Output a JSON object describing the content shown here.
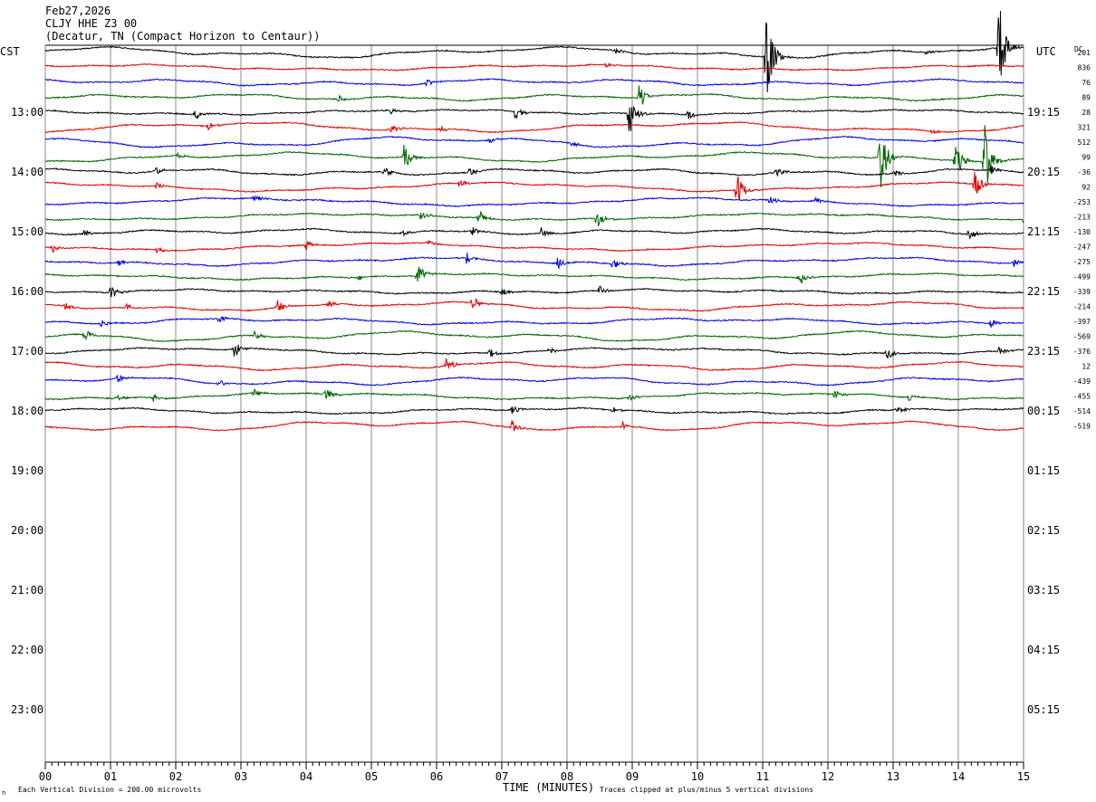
{
  "header": {
    "date": "Feb27,2026",
    "station": "CLJY HHE Z3 00",
    "location": "(Decatur, TN (Compact Horizon to Centaur))"
  },
  "labels": {
    "left_zone": "CST",
    "right_zone": "UTC",
    "dc_label": "DC",
    "xlabel": "TIME (MINUTES)",
    "footer_left": "Each Vertical Division =  200.00 microvolts",
    "footer_right": "Traces clipped at plus/minus 5 vertical divisions"
  },
  "colors": {
    "trace_cycle": [
      "#000000",
      "#e00000",
      "#0000e0",
      "#006400"
    ],
    "grid": "#888888"
  },
  "chart_data": {
    "type": "line",
    "title": "CLJY HHE Z3 00",
    "xlabel": "TIME (MINUTES)",
    "xlim": [
      0,
      15
    ],
    "x_ticks": [
      "00",
      "01",
      "02",
      "03",
      "04",
      "05",
      "06",
      "07",
      "08",
      "09",
      "10",
      "11",
      "12",
      "13",
      "14",
      "15"
    ],
    "rows_total": 48,
    "rows_per_hour": 4,
    "rows_with_data": 26,
    "left_hour_labels": [
      "13:00",
      "14:00",
      "15:00",
      "16:00",
      "17:00",
      "18:00",
      "19:00",
      "20:00",
      "21:00",
      "22:00",
      "23:00"
    ],
    "right_hour_labels": [
      "19:15",
      "20:15",
      "21:15",
      "22:15",
      "23:15",
      "00:15",
      "01:15",
      "02:15",
      "03:15",
      "04:15",
      "05:15"
    ],
    "dc_offsets": [
      "201",
      "836",
      "76",
      "89",
      "28",
      "321",
      "512",
      "99",
      "-36",
      "92",
      "-253",
      "-213",
      "-130",
      "-247",
      "-275",
      "-499",
      "-339",
      "-214",
      "-397",
      "-569",
      "-376",
      "12",
      "-439",
      "-455",
      "-514",
      "-519"
    ],
    "events": [
      {
        "row": 0,
        "minute": 11.05,
        "amp": 60
      },
      {
        "row": 0,
        "minute": 14.62,
        "amp": 60
      },
      {
        "row": 0,
        "minute": 8.75,
        "amp": 4
      },
      {
        "row": 0,
        "minute": 13.5,
        "amp": 3
      },
      {
        "row": 1,
        "minute": 8.6,
        "amp": 3
      },
      {
        "row": 2,
        "minute": 5.85,
        "amp": 5
      },
      {
        "row": 3,
        "minute": 4.5,
        "amp": 4
      },
      {
        "row": 3,
        "minute": 9.1,
        "amp": 15
      },
      {
        "row": 4,
        "minute": 2.3,
        "amp": 6
      },
      {
        "row": 4,
        "minute": 7.2,
        "amp": 10
      },
      {
        "row": 4,
        "minute": 8.95,
        "amp": 28
      },
      {
        "row": 4,
        "minute": 9.85,
        "amp": 6
      },
      {
        "row": 4,
        "minute": 5.3,
        "amp": 4
      },
      {
        "row": 5,
        "minute": 2.5,
        "amp": 5
      },
      {
        "row": 5,
        "minute": 5.3,
        "amp": 6
      },
      {
        "row": 5,
        "minute": 6.05,
        "amp": 5
      },
      {
        "row": 5,
        "minute": 13.6,
        "amp": 4
      },
      {
        "row": 6,
        "minute": 6.8,
        "amp": 4
      },
      {
        "row": 6,
        "minute": 8.05,
        "amp": 4
      },
      {
        "row": 7,
        "minute": 5.5,
        "amp": 18
      },
      {
        "row": 7,
        "minute": 12.8,
        "amp": 45
      },
      {
        "row": 7,
        "minute": 13.95,
        "amp": 25
      },
      {
        "row": 7,
        "minute": 14.4,
        "amp": 50
      },
      {
        "row": 7,
        "minute": 2.0,
        "amp": 4
      },
      {
        "row": 8,
        "minute": 1.7,
        "amp": 5
      },
      {
        "row": 8,
        "minute": 5.2,
        "amp": 6
      },
      {
        "row": 8,
        "minute": 6.5,
        "amp": 6
      },
      {
        "row": 8,
        "minute": 11.2,
        "amp": 7
      },
      {
        "row": 8,
        "minute": 13.0,
        "amp": 5
      },
      {
        "row": 8,
        "minute": 14.5,
        "amp": 6
      },
      {
        "row": 9,
        "minute": 1.7,
        "amp": 5
      },
      {
        "row": 9,
        "minute": 6.35,
        "amp": 5
      },
      {
        "row": 9,
        "minute": 10.6,
        "amp": 22
      },
      {
        "row": 9,
        "minute": 14.25,
        "amp": 18
      },
      {
        "row": 10,
        "minute": 3.2,
        "amp": 6
      },
      {
        "row": 10,
        "minute": 11.1,
        "amp": 5
      },
      {
        "row": 10,
        "minute": 11.8,
        "amp": 5
      },
      {
        "row": 11,
        "minute": 5.75,
        "amp": 7
      },
      {
        "row": 11,
        "minute": 6.65,
        "amp": 10
      },
      {
        "row": 11,
        "minute": 8.45,
        "amp": 12
      },
      {
        "row": 11,
        "minute": 15.0,
        "amp": 5
      },
      {
        "row": 12,
        "minute": 0.6,
        "amp": 5
      },
      {
        "row": 12,
        "minute": 5.45,
        "amp": 5
      },
      {
        "row": 12,
        "minute": 6.55,
        "amp": 5
      },
      {
        "row": 12,
        "minute": 7.6,
        "amp": 7
      },
      {
        "row": 12,
        "minute": 14.15,
        "amp": 9
      },
      {
        "row": 13,
        "minute": 0.1,
        "amp": 6
      },
      {
        "row": 13,
        "minute": 1.7,
        "amp": 6
      },
      {
        "row": 13,
        "minute": 4.0,
        "amp": 7
      },
      {
        "row": 13,
        "minute": 5.85,
        "amp": 4
      },
      {
        "row": 14,
        "minute": 1.1,
        "amp": 4
      },
      {
        "row": 14,
        "minute": 6.45,
        "amp": 8
      },
      {
        "row": 14,
        "minute": 7.85,
        "amp": 8
      },
      {
        "row": 14,
        "minute": 8.7,
        "amp": 8
      },
      {
        "row": 14,
        "minute": 14.85,
        "amp": 5
      },
      {
        "row": 15,
        "minute": 4.8,
        "amp": 4
      },
      {
        "row": 15,
        "minute": 5.7,
        "amp": 18
      },
      {
        "row": 15,
        "minute": 11.55,
        "amp": 11
      },
      {
        "row": 16,
        "minute": 1.0,
        "amp": 10
      },
      {
        "row": 16,
        "minute": 7.0,
        "amp": 5
      },
      {
        "row": 16,
        "minute": 8.5,
        "amp": 7
      },
      {
        "row": 17,
        "minute": 0.3,
        "amp": 6
      },
      {
        "row": 17,
        "minute": 1.25,
        "amp": 5
      },
      {
        "row": 17,
        "minute": 3.55,
        "amp": 9
      },
      {
        "row": 17,
        "minute": 4.35,
        "amp": 5
      },
      {
        "row": 17,
        "minute": 6.55,
        "amp": 8
      },
      {
        "row": 18,
        "minute": 0.85,
        "amp": 5
      },
      {
        "row": 18,
        "minute": 2.65,
        "amp": 5
      },
      {
        "row": 18,
        "minute": 14.5,
        "amp": 6
      },
      {
        "row": 19,
        "minute": 0.6,
        "amp": 9
      },
      {
        "row": 19,
        "minute": 3.2,
        "amp": 6
      },
      {
        "row": 20,
        "minute": 2.9,
        "amp": 10
      },
      {
        "row": 20,
        "minute": 6.8,
        "amp": 6
      },
      {
        "row": 20,
        "minute": 7.7,
        "amp": 6
      },
      {
        "row": 20,
        "minute": 12.9,
        "amp": 8
      },
      {
        "row": 20,
        "minute": 14.6,
        "amp": 6
      },
      {
        "row": 21,
        "minute": 6.15,
        "amp": 11
      },
      {
        "row": 22,
        "minute": 1.1,
        "amp": 7
      },
      {
        "row": 22,
        "minute": 2.65,
        "amp": 6
      },
      {
        "row": 23,
        "minute": 1.1,
        "amp": 4
      },
      {
        "row": 23,
        "minute": 1.65,
        "amp": 5
      },
      {
        "row": 23,
        "minute": 3.2,
        "amp": 6
      },
      {
        "row": 23,
        "minute": 4.3,
        "amp": 8
      },
      {
        "row": 23,
        "minute": 8.95,
        "amp": 5
      },
      {
        "row": 23,
        "minute": 12.1,
        "amp": 6
      },
      {
        "row": 23,
        "minute": 13.25,
        "amp": 6
      },
      {
        "row": 24,
        "minute": 7.15,
        "amp": 6
      },
      {
        "row": 24,
        "minute": 8.7,
        "amp": 4
      },
      {
        "row": 24,
        "minute": 13.05,
        "amp": 5
      },
      {
        "row": 25,
        "minute": 7.15,
        "amp": 9
      },
      {
        "row": 25,
        "minute": 8.85,
        "amp": 6
      }
    ]
  }
}
